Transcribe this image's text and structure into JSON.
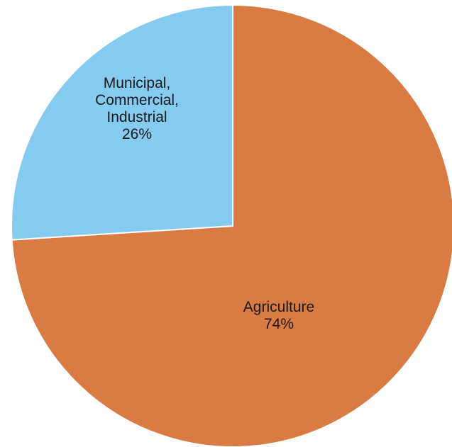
{
  "chart_data": {
    "type": "pie",
    "title": "",
    "start_angle": "12 o'clock",
    "direction": "clockwise",
    "slices": [
      {
        "label_lines": [
          "Agriculture"
        ],
        "percent_label": "74%",
        "value": 74,
        "color": "#D97B42"
      },
      {
        "label_lines": [
          "Municipal,",
          "Commercial,",
          "Industrial"
        ],
        "percent_label": "26%",
        "value": 26,
        "color": "#85CBF0"
      }
    ]
  }
}
